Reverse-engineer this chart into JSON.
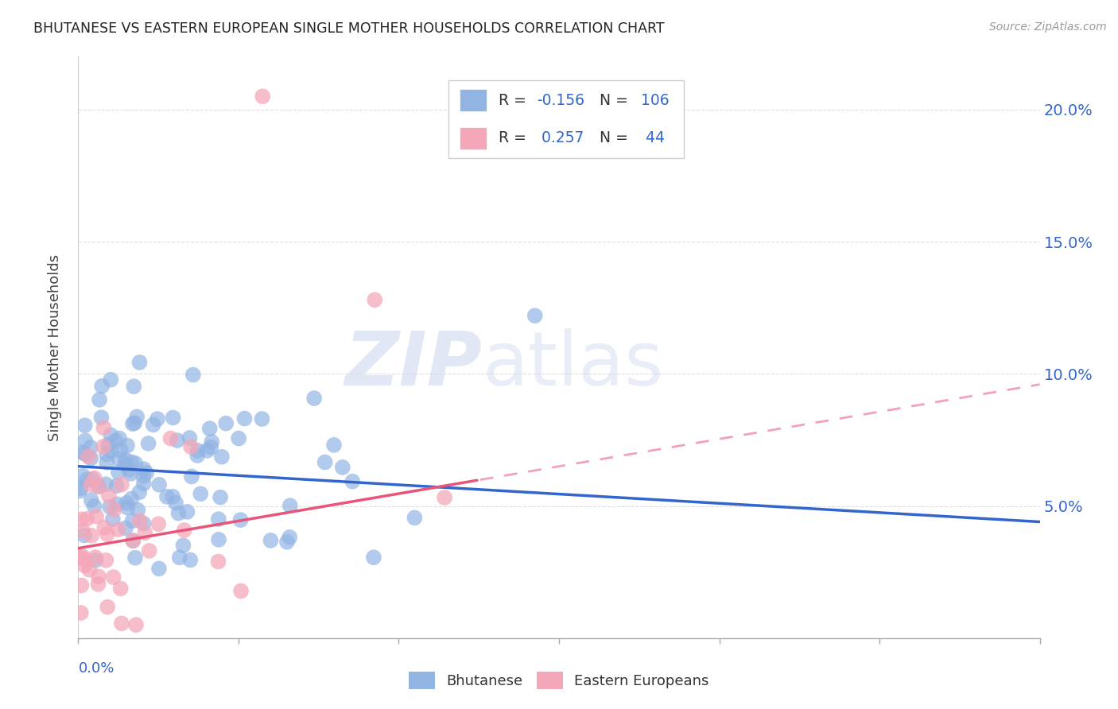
{
  "title": "BHUTANESE VS EASTERN EUROPEAN SINGLE MOTHER HOUSEHOLDS CORRELATION CHART",
  "source": "Source: ZipAtlas.com",
  "ylabel": "Single Mother Households",
  "yticks": [
    0.0,
    0.05,
    0.1,
    0.15,
    0.2
  ],
  "ytick_labels": [
    "",
    "5.0%",
    "10.0%",
    "15.0%",
    "20.0%"
  ],
  "xlim": [
    0.0,
    0.6
  ],
  "ylim": [
    0.0,
    0.22
  ],
  "blue_color": "#92B4E3",
  "pink_color": "#F4A7B9",
  "blue_line_color": "#3366CC",
  "pink_line_color": "#E8547A",
  "blue_R": -0.156,
  "blue_N": 106,
  "pink_R": 0.257,
  "pink_N": 44,
  "blue_line_x0": 0.0,
  "blue_line_y0": 0.065,
  "blue_line_x1": 0.6,
  "blue_line_y1": 0.044,
  "pink_line_x0": 0.0,
  "pink_line_y0": 0.034,
  "pink_line_x1": 0.6,
  "pink_line_y1": 0.096
}
